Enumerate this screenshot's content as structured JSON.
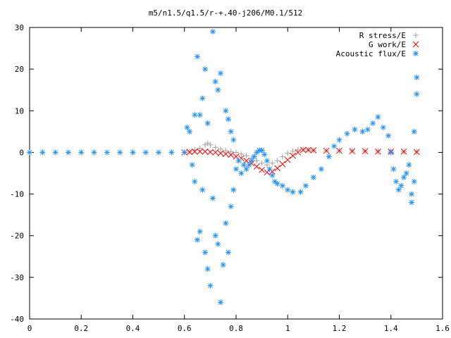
{
  "chart_data": {
    "type": "scatter",
    "title": "m5/n1.5/q1.5/r-+.40-j206/M0.1/512",
    "xlabel": "",
    "ylabel": "",
    "xlim": [
      0,
      1.6
    ],
    "ylim": [
      -40,
      30
    ],
    "x_ticks": [
      0,
      0.2,
      0.4,
      0.6,
      0.8,
      1,
      1.2,
      1.4,
      1.6
    ],
    "x_tick_labels": [
      "0",
      "0.2",
      "0.4",
      "0.6",
      "0.8",
      "1",
      "1.2",
      "1.4",
      "1.6"
    ],
    "y_ticks": [
      -40,
      -30,
      -20,
      -10,
      0,
      10,
      20,
      30
    ],
    "y_tick_labels": [
      "-40",
      "-30",
      "-20",
      "-10",
      "0",
      "10",
      "20",
      "30"
    ],
    "grid": false,
    "legend_position": "top-right",
    "series": [
      {
        "name": "R stress/E",
        "marker": "plus",
        "color": "#a0a0a0",
        "points": [
          [
            0.6,
            0.0
          ],
          [
            0.62,
            0.2
          ],
          [
            0.64,
            0.6
          ],
          [
            0.66,
            1.0
          ],
          [
            0.68,
            1.8
          ],
          [
            0.69,
            2.2
          ],
          [
            0.7,
            1.8
          ],
          [
            0.72,
            1.2
          ],
          [
            0.74,
            0.8
          ],
          [
            0.76,
            0.4
          ],
          [
            0.78,
            0.2
          ],
          [
            0.8,
            0.0
          ],
          [
            0.82,
            -0.4
          ],
          [
            0.84,
            -0.8
          ],
          [
            0.86,
            -1.4
          ],
          [
            0.88,
            -2.0
          ],
          [
            0.9,
            -2.6
          ],
          [
            0.92,
            -3.0
          ],
          [
            0.94,
            -2.6
          ],
          [
            0.96,
            -2.0
          ],
          [
            0.98,
            -1.0
          ],
          [
            1.0,
            -0.2
          ],
          [
            1.02,
            0.3
          ],
          [
            1.04,
            0.6
          ],
          [
            1.06,
            0.8
          ],
          [
            1.08,
            0.6
          ],
          [
            1.1,
            0.5
          ],
          [
            1.15,
            0.4
          ],
          [
            1.2,
            0.4
          ],
          [
            1.25,
            0.4
          ],
          [
            1.3,
            0.3
          ],
          [
            1.35,
            0.3
          ],
          [
            1.4,
            0.3
          ],
          [
            1.45,
            0.2
          ],
          [
            1.5,
            0.2
          ]
        ]
      },
      {
        "name": "G work/E",
        "marker": "cross",
        "color": "#ff0000",
        "points": [
          [
            0.6,
            0.0
          ],
          [
            0.62,
            0.1
          ],
          [
            0.64,
            0.2
          ],
          [
            0.66,
            0.2
          ],
          [
            0.68,
            0.2
          ],
          [
            0.7,
            0.1
          ],
          [
            0.72,
            0.0
          ],
          [
            0.74,
            -0.2
          ],
          [
            0.76,
            -0.4
          ],
          [
            0.78,
            -0.6
          ],
          [
            0.8,
            -1.0
          ],
          [
            0.82,
            -1.4
          ],
          [
            0.84,
            -2.0
          ],
          [
            0.86,
            -2.6
          ],
          [
            0.88,
            -3.4
          ],
          [
            0.9,
            -4.2
          ],
          [
            0.92,
            -4.8
          ],
          [
            0.94,
            -4.6
          ],
          [
            0.96,
            -3.8
          ],
          [
            0.98,
            -2.8
          ],
          [
            1.0,
            -1.8
          ],
          [
            1.02,
            -0.8
          ],
          [
            1.04,
            0.0
          ],
          [
            1.06,
            0.6
          ],
          [
            1.08,
            0.6
          ],
          [
            1.1,
            0.5
          ],
          [
            1.15,
            0.4
          ],
          [
            1.2,
            0.4
          ],
          [
            1.25,
            0.3
          ],
          [
            1.3,
            0.3
          ],
          [
            1.35,
            0.2
          ],
          [
            1.4,
            0.2
          ],
          [
            1.45,
            0.2
          ],
          [
            1.5,
            0.1
          ]
        ]
      },
      {
        "name": "Acoustic flux/E",
        "marker": "star",
        "color": "#1e90ff",
        "points": [
          [
            0.61,
            6
          ],
          [
            0.62,
            5
          ],
          [
            0.63,
            -3
          ],
          [
            0.64,
            9
          ],
          [
            0.64,
            -7
          ],
          [
            0.65,
            23
          ],
          [
            0.65,
            -21
          ],
          [
            0.66,
            9
          ],
          [
            0.66,
            -19
          ],
          [
            0.67,
            13
          ],
          [
            0.67,
            -9
          ],
          [
            0.68,
            20
          ],
          [
            0.68,
            -24
          ],
          [
            0.69,
            7
          ],
          [
            0.69,
            -28
          ],
          [
            0.7,
            -32
          ],
          [
            0.71,
            29
          ],
          [
            0.71,
            -11
          ],
          [
            0.72,
            17
          ],
          [
            0.72,
            -20
          ],
          [
            0.73,
            15
          ],
          [
            0.73,
            -22
          ],
          [
            0.74,
            19
          ],
          [
            0.74,
            -36
          ],
          [
            0.75,
            -27
          ],
          [
            0.76,
            10
          ],
          [
            0.76,
            -17
          ],
          [
            0.77,
            8
          ],
          [
            0.77,
            -24
          ],
          [
            0.78,
            5
          ],
          [
            0.78,
            -13
          ],
          [
            0.79,
            3
          ],
          [
            0.79,
            -9
          ],
          [
            0.8,
            -4
          ],
          [
            0.81,
            -2
          ],
          [
            0.82,
            -5
          ],
          [
            0.83,
            -3
          ],
          [
            0.84,
            -4
          ],
          [
            0.85,
            -3
          ],
          [
            0.86,
            -2
          ],
          [
            0.87,
            -1
          ],
          [
            0.88,
            0
          ],
          [
            0.89,
            0.5
          ],
          [
            0.9,
            0.5
          ],
          [
            0.91,
            -0.5
          ],
          [
            0.92,
            -2
          ],
          [
            0.93,
            -4
          ],
          [
            0.94,
            -5.5
          ],
          [
            0.95,
            -7
          ],
          [
            0.96,
            -7.5
          ],
          [
            0.98,
            -8
          ],
          [
            1.0,
            -9
          ],
          [
            1.02,
            -9.5
          ],
          [
            1.05,
            -9.5
          ],
          [
            1.07,
            -8
          ],
          [
            1.1,
            -6
          ],
          [
            1.13,
            -4
          ],
          [
            1.16,
            -1
          ],
          [
            1.18,
            1.5
          ],
          [
            1.2,
            3
          ],
          [
            1.23,
            4.5
          ],
          [
            1.26,
            5.5
          ],
          [
            1.29,
            5
          ],
          [
            1.31,
            5.5
          ],
          [
            1.33,
            7
          ],
          [
            1.35,
            8.5
          ],
          [
            1.37,
            6
          ],
          [
            1.39,
            4
          ],
          [
            1.4,
            0
          ],
          [
            1.41,
            -4
          ],
          [
            1.42,
            -7
          ],
          [
            1.43,
            -9
          ],
          [
            1.44,
            -8
          ],
          [
            1.45,
            -6
          ],
          [
            1.46,
            -5
          ],
          [
            1.47,
            -3
          ],
          [
            1.48,
            -10
          ],
          [
            1.48,
            -12
          ],
          [
            1.49,
            5
          ],
          [
            1.49,
            -7
          ],
          [
            1.5,
            14
          ],
          [
            1.5,
            18
          ]
        ]
      },
      {
        "name": "",
        "marker": "star",
        "color": "#1e90ff",
        "points": [
          [
            0.0,
            0
          ],
          [
            0.05,
            0
          ],
          [
            0.1,
            0
          ],
          [
            0.15,
            0
          ],
          [
            0.2,
            0
          ],
          [
            0.25,
            0
          ],
          [
            0.3,
            0
          ],
          [
            0.35,
            0
          ],
          [
            0.4,
            0
          ],
          [
            0.45,
            0
          ],
          [
            0.5,
            0
          ],
          [
            0.55,
            0
          ],
          [
            0.6,
            0
          ]
        ]
      }
    ]
  }
}
